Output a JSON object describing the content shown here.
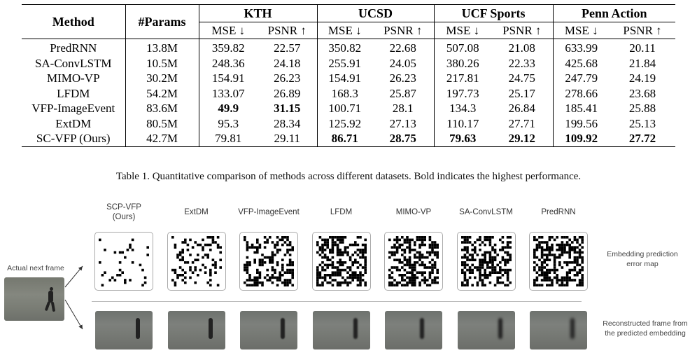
{
  "table": {
    "method_header": "Method",
    "params_header": "#Params",
    "datasets": [
      "KTH",
      "UCSD",
      "UCF Sports",
      "Penn Action"
    ],
    "metric_headers": [
      "MSE ↓",
      "PSNR ↑",
      "MSE ↓",
      "PSNR ↑",
      "MSE ↓",
      "PSNR ↑",
      "MSE ↓",
      "PSNR ↑"
    ],
    "rows": [
      {
        "method": "PredRNN",
        "params": "13.8M",
        "values": [
          "359.82",
          "22.57",
          "350.82",
          "22.68",
          "507.08",
          "21.08",
          "633.99",
          "20.11"
        ],
        "bold": [
          false,
          false,
          false,
          false,
          false,
          false,
          false,
          false
        ]
      },
      {
        "method": "SA-ConvLSTM",
        "params": "10.5M",
        "values": [
          "248.36",
          "24.18",
          "255.91",
          "24.05",
          "380.26",
          "22.33",
          "425.68",
          "21.84"
        ],
        "bold": [
          false,
          false,
          false,
          false,
          false,
          false,
          false,
          false
        ]
      },
      {
        "method": "MIMO-VP",
        "params": "30.2M",
        "values": [
          "154.91",
          "26.23",
          "154.91",
          "26.23",
          "217.81",
          "24.75",
          "247.79",
          "24.19"
        ],
        "bold": [
          false,
          false,
          false,
          false,
          false,
          false,
          false,
          false
        ]
      },
      {
        "method": "LFDM",
        "params": "54.2M",
        "values": [
          "133.07",
          "26.89",
          "168.3",
          "25.87",
          "197.73",
          "25.17",
          "278.66",
          "23.68"
        ],
        "bold": [
          false,
          false,
          false,
          false,
          false,
          false,
          false,
          false
        ]
      },
      {
        "method": "VFP-ImageEvent",
        "params": "83.6M",
        "values": [
          "49.9",
          "31.15",
          "100.71",
          "28.1",
          "134.3",
          "26.84",
          "185.41",
          "25.88"
        ],
        "bold": [
          true,
          true,
          false,
          false,
          false,
          false,
          false,
          false
        ]
      },
      {
        "method": "ExtDM",
        "params": "80.5M",
        "values": [
          "95.3",
          "28.34",
          "125.92",
          "27.13",
          "110.17",
          "27.71",
          "199.56",
          "25.13"
        ],
        "bold": [
          false,
          false,
          false,
          false,
          false,
          false,
          false,
          false
        ]
      },
      {
        "method": "SC-VFP (Ours)",
        "params": "42.7M",
        "values": [
          "79.81",
          "29.11",
          "86.71",
          "28.75",
          "79.63",
          "29.12",
          "109.92",
          "27.72"
        ],
        "bold": [
          false,
          false,
          true,
          true,
          true,
          true,
          true,
          true
        ]
      }
    ]
  },
  "caption": "Table 1. Quantitative comparison of methods across different datasets. Bold indicates the highest performance.",
  "figure": {
    "actual_label": "Actual next frame",
    "methods": [
      {
        "label": "SCP-VFP\n(Ours)",
        "density": 0.07
      },
      {
        "label": "ExtDM",
        "density": 0.22
      },
      {
        "label": "VFP-ImageEvent",
        "density": 0.38
      },
      {
        "label": "LFDM",
        "density": 0.5
      },
      {
        "label": "MIMO-VP",
        "density": 0.5
      },
      {
        "label": "SA-ConvLSTM",
        "density": 0.5
      },
      {
        "label": "PredRNN",
        "density": 0.55
      }
    ],
    "error_map_label": "Embedding prediction\nerror map",
    "recon_label": "Reconstructed frame from\nthe predicted embedding"
  }
}
